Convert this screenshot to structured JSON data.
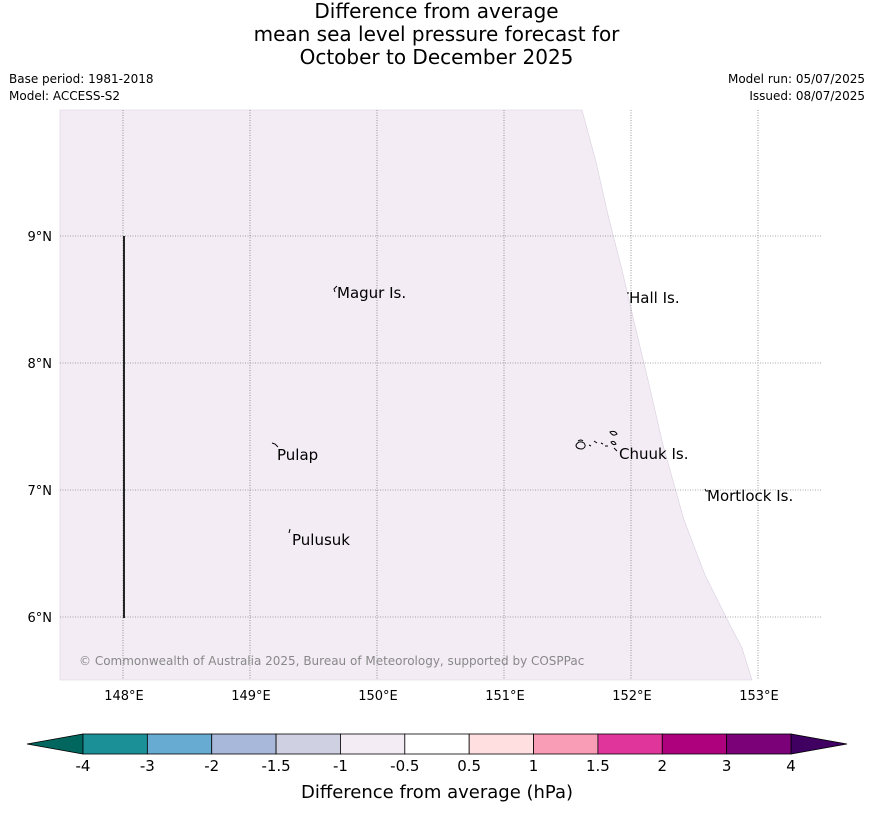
{
  "title": {
    "line1": "Difference from average",
    "line2": "mean sea level pressure forecast for",
    "line3": "October to December 2025"
  },
  "meta": {
    "base_period": "Base period: 1981-2018",
    "model": "Model: ACCESS-S2",
    "model_run": "Model run: 05/07/2025",
    "issued": "Issued: 08/07/2025"
  },
  "map": {
    "lon_ticks": [
      "148°E",
      "149°E",
      "150°E",
      "151°E",
      "152°E",
      "153°E"
    ],
    "lat_ticks": [
      "9°N",
      "8°N",
      "7°N",
      "6°N"
    ],
    "shading_color": "#f3ecf5",
    "shading_category": "-0.5 to -1",
    "places": [
      {
        "name": "Magur Is.",
        "lon": 149.67,
        "lat": 8.57
      },
      {
        "name": "Hall Is.",
        "lon": 151.98,
        "lat": 8.52
      },
      {
        "name": "Pulap",
        "lon": 149.18,
        "lat": 7.36
      },
      {
        "name": "Chuuk Is.",
        "lon": 151.85,
        "lat": 7.35
      },
      {
        "name": "Mortlock Is.",
        "lon": 152.6,
        "lat": 7.0
      },
      {
        "name": "Pulusuk",
        "lon": 149.3,
        "lat": 6.68
      }
    ],
    "copyright": "© Commonwealth of Australia 2025, Bureau of Meteorology, supported by COSPPac"
  },
  "colorbar": {
    "title": "Difference from average (hPa)",
    "labels": [
      "-4",
      "-3",
      "-2",
      "-1.5",
      "-1",
      "-0.5",
      "0.5",
      "1",
      "1.5",
      "2",
      "3",
      "4"
    ],
    "under_color": "#00665e",
    "over_color": "#3f0062",
    "colors": [
      "#1b9097",
      "#67abd3",
      "#a8b8da",
      "#d0d0e3",
      "#f3ecf5",
      "#ffffff",
      "#ffdfe0",
      "#f99db6",
      "#e0369c",
      "#ae017e",
      "#7a0177"
    ]
  }
}
